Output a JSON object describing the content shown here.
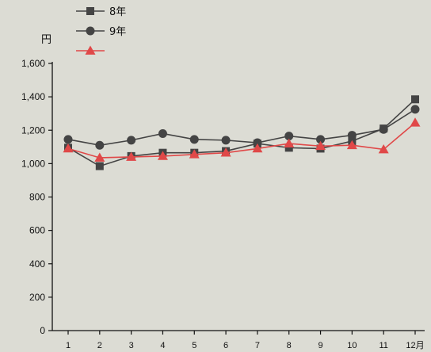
{
  "chart_data": {
    "type": "line",
    "title": "",
    "xlabel": "",
    "ylabel": "円",
    "x": [
      "1",
      "2",
      "3",
      "4",
      "5",
      "6",
      "7",
      "8",
      "9",
      "10",
      "11",
      "12月"
    ],
    "ylim": [
      0,
      1600
    ],
    "yticks": [
      "0",
      "200",
      "400",
      "600",
      "800",
      "1,000",
      "1,200",
      "1,400",
      "1,600"
    ],
    "grid": false,
    "legend_position": "top-left",
    "series": [
      {
        "name": "8年",
        "marker": "square",
        "color": "#444444",
        "values": [
          1095,
          985,
          1045,
          1065,
          1065,
          1075,
          1120,
          1095,
          1090,
          1135,
          1210,
          1385
        ]
      },
      {
        "name": "9年",
        "marker": "circle",
        "color": "#444444",
        "values": [
          1145,
          1110,
          1140,
          1180,
          1145,
          1140,
          1125,
          1165,
          1145,
          1170,
          1205,
          1325
        ]
      },
      {
        "name": "",
        "marker": "triangle",
        "color": "#e04848",
        "values": [
          1090,
          1035,
          1040,
          1045,
          1055,
          1065,
          1090,
          1120,
          1105,
          1110,
          1085,
          1245
        ]
      }
    ]
  }
}
